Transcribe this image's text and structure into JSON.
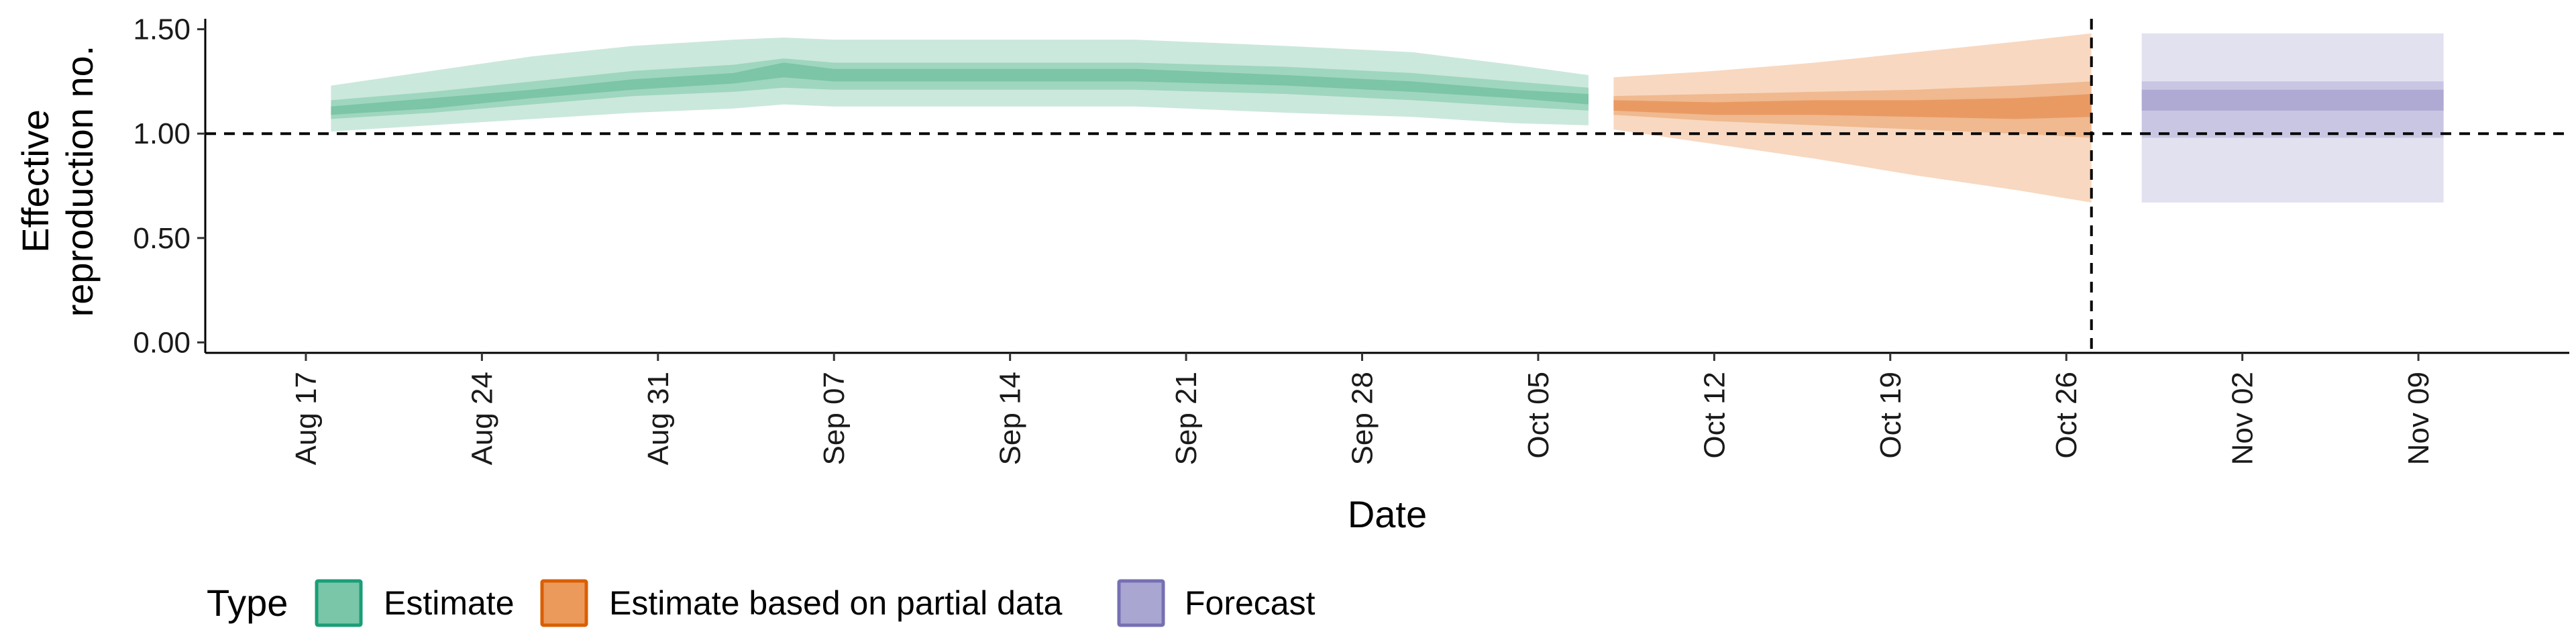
{
  "chart_data": {
    "type": "area",
    "xlabel": "Date",
    "ylabel": "Effective reproduction no.",
    "ylabel_lines": [
      "Effective",
      "reproduction no."
    ],
    "x_range": [
      "2023-08-13",
      "2023-11-15"
    ],
    "ylim": [
      -0.05,
      1.55
    ],
    "y_ticks": [
      0.0,
      0.5,
      1.0,
      1.5
    ],
    "y_tick_labels": [
      "0.00",
      "0.50",
      "1.00",
      "1.50"
    ],
    "x_ticks": [
      "2023-08-17",
      "2023-08-24",
      "2023-08-31",
      "2023-09-07",
      "2023-09-14",
      "2023-09-21",
      "2023-09-28",
      "2023-10-05",
      "2023-10-12",
      "2023-10-19",
      "2023-10-26",
      "2023-11-02",
      "2023-11-09"
    ],
    "x_tick_labels": [
      "Aug 17",
      "Aug 24",
      "Aug 31",
      "Sep 07",
      "Sep 14",
      "Sep 21",
      "Sep 28",
      "Oct 05",
      "Oct 12",
      "Oct 19",
      "Oct 26",
      "Nov 02",
      "Nov 09"
    ],
    "reference_line_y": 1.0,
    "reference_line_date": "2023-10-27",
    "grid": false,
    "legend": {
      "title": "Type",
      "placement": "bottom-left",
      "entries": [
        "Estimate",
        "Estimate based on partial data",
        "Forecast"
      ]
    },
    "series": [
      {
        "name": "Estimate",
        "color": "#1b9e77",
        "fill_outer": "#cbe8dc",
        "fill_mid": "#9fd6bf",
        "fill_inner": "#7cc5a6",
        "points": [
          {
            "x": "2023-08-18",
            "lo90": 1.01,
            "lo50": 1.07,
            "lo20": 1.09,
            "median": 1.11,
            "hi20": 1.13,
            "hi50": 1.16,
            "hi90": 1.23
          },
          {
            "x": "2023-08-22",
            "lo90": 1.04,
            "lo50": 1.1,
            "lo20": 1.12,
            "median": 1.15,
            "hi20": 1.17,
            "hi50": 1.2,
            "hi90": 1.3
          },
          {
            "x": "2023-08-26",
            "lo90": 1.07,
            "lo50": 1.14,
            "lo20": 1.17,
            "median": 1.19,
            "hi20": 1.21,
            "hi50": 1.25,
            "hi90": 1.37
          },
          {
            "x": "2023-08-30",
            "lo90": 1.1,
            "lo50": 1.18,
            "lo20": 1.21,
            "median": 1.24,
            "hi20": 1.26,
            "hi50": 1.3,
            "hi90": 1.42
          },
          {
            "x": "2023-09-03",
            "lo90": 1.12,
            "lo50": 1.2,
            "lo20": 1.24,
            "median": 1.27,
            "hi20": 1.29,
            "hi50": 1.33,
            "hi90": 1.45
          },
          {
            "x": "2023-09-05",
            "lo90": 1.14,
            "lo50": 1.22,
            "lo20": 1.27,
            "median": 1.32,
            "hi20": 1.34,
            "hi50": 1.36,
            "hi90": 1.46
          },
          {
            "x": "2023-09-07",
            "lo90": 1.13,
            "lo50": 1.21,
            "lo20": 1.25,
            "median": 1.28,
            "hi20": 1.31,
            "hi50": 1.34,
            "hi90": 1.45
          },
          {
            "x": "2023-09-12",
            "lo90": 1.13,
            "lo50": 1.21,
            "lo20": 1.25,
            "median": 1.28,
            "hi20": 1.31,
            "hi50": 1.34,
            "hi90": 1.45
          },
          {
            "x": "2023-09-19",
            "lo90": 1.13,
            "lo50": 1.21,
            "lo20": 1.25,
            "median": 1.28,
            "hi20": 1.31,
            "hi50": 1.34,
            "hi90": 1.45
          },
          {
            "x": "2023-09-25",
            "lo90": 1.1,
            "lo50": 1.19,
            "lo20": 1.23,
            "median": 1.26,
            "hi20": 1.28,
            "hi50": 1.32,
            "hi90": 1.42
          },
          {
            "x": "2023-09-30",
            "lo90": 1.08,
            "lo50": 1.16,
            "lo20": 1.2,
            "median": 1.23,
            "hi20": 1.25,
            "hi50": 1.29,
            "hi90": 1.39
          },
          {
            "x": "2023-10-04",
            "lo90": 1.05,
            "lo50": 1.13,
            "lo20": 1.17,
            "median": 1.19,
            "hi20": 1.21,
            "hi50": 1.25,
            "hi90": 1.33
          },
          {
            "x": "2023-10-07",
            "lo90": 1.04,
            "lo50": 1.11,
            "lo20": 1.14,
            "median": 1.16,
            "hi20": 1.19,
            "hi50": 1.22,
            "hi90": 1.28
          }
        ]
      },
      {
        "name": "Estimate based on partial data",
        "color": "#d95f02",
        "fill_outer": "#f8d8c0",
        "fill_mid": "#f0b98f",
        "fill_inner": "#e99a63",
        "points": [
          {
            "x": "2023-10-08",
            "lo90": 1.02,
            "lo50": 1.09,
            "lo20": 1.11,
            "median": 1.13,
            "hi20": 1.16,
            "hi50": 1.18,
            "hi90": 1.27
          },
          {
            "x": "2023-10-12",
            "lo90": 0.95,
            "lo50": 1.06,
            "lo20": 1.09,
            "median": 1.12,
            "hi20": 1.15,
            "hi50": 1.19,
            "hi90": 1.3
          },
          {
            "x": "2023-10-16",
            "lo90": 0.88,
            "lo50": 1.04,
            "lo20": 1.09,
            "median": 1.12,
            "hi20": 1.16,
            "hi50": 1.2,
            "hi90": 1.34
          },
          {
            "x": "2023-10-20",
            "lo90": 0.8,
            "lo50": 1.02,
            "lo20": 1.08,
            "median": 1.12,
            "hi20": 1.16,
            "hi50": 1.21,
            "hi90": 1.39
          },
          {
            "x": "2023-10-24",
            "lo90": 0.73,
            "lo50": 1.0,
            "lo20": 1.07,
            "median": 1.12,
            "hi20": 1.17,
            "hi50": 1.23,
            "hi90": 1.44
          },
          {
            "x": "2023-10-27",
            "lo90": 0.67,
            "lo50": 0.98,
            "lo20": 1.08,
            "median": 1.14,
            "hi20": 1.19,
            "hi50": 1.25,
            "hi90": 1.48
          }
        ]
      },
      {
        "name": "Forecast",
        "color": "#7570b3",
        "fill_outer": "#e2e1f0",
        "fill_mid": "#c8c6e2",
        "fill_inner": "#aeaad3",
        "points": [
          {
            "x": "2023-10-29",
            "lo90": 0.67,
            "lo50": 0.98,
            "lo20": 1.11,
            "median": 1.18,
            "hi20": 1.21,
            "hi50": 1.25,
            "hi90": 1.48
          },
          {
            "x": "2023-11-10",
            "lo90": 0.67,
            "lo50": 0.98,
            "lo20": 1.11,
            "median": 1.18,
            "hi20": 1.21,
            "hi50": 1.25,
            "hi90": 1.48
          }
        ]
      }
    ]
  }
}
